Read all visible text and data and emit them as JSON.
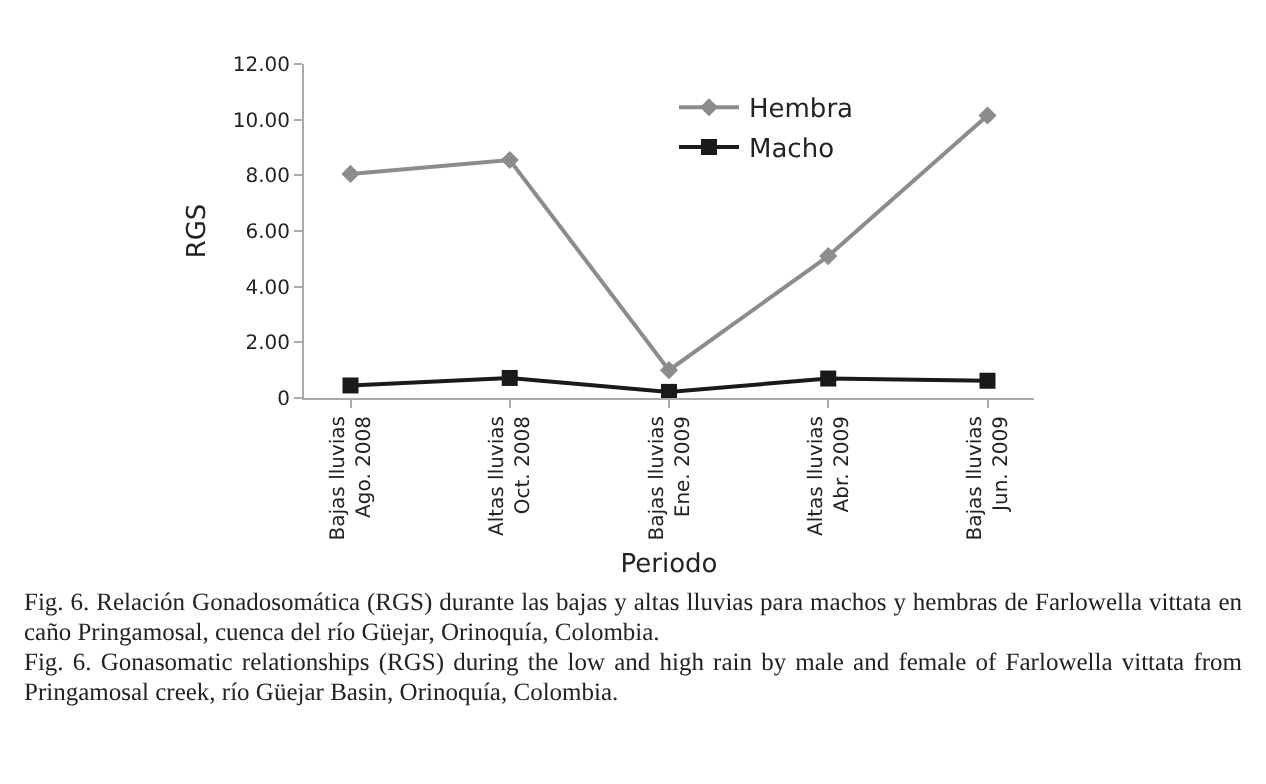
{
  "chart_data": {
    "type": "line",
    "xlabel": "Periodo",
    "ylabel": "RGS",
    "categories": [
      "Bajas lluvias\nAgo. 2008",
      "Altas lluvias\nOct. 2008",
      "Bajas lluvias\nEne. 2009",
      "Altas lluvias\nAbr. 2009",
      "Bajas lluvias\nJun. 2009"
    ],
    "series": [
      {
        "name": "Hembra",
        "color": "#8c8c8c",
        "marker": "diamond",
        "values": [
          8.05,
          8.55,
          1.0,
          5.1,
          10.15
        ]
      },
      {
        "name": "Macho",
        "color": "#1a1a1a",
        "marker": "square",
        "values": [
          0.45,
          0.72,
          0.22,
          0.7,
          0.62
        ]
      }
    ],
    "ylim": [
      0,
      12
    ],
    "yticks": [
      {
        "value": 0,
        "label": "0"
      },
      {
        "value": 2,
        "label": "2.00"
      },
      {
        "value": 4,
        "label": "4.00"
      },
      {
        "value": 6,
        "label": "6.00"
      },
      {
        "value": 8,
        "label": "8.00"
      },
      {
        "value": 10,
        "label": "10.00"
      },
      {
        "value": 12,
        "label": "12.00"
      }
    ],
    "grid": false,
    "legend": "top",
    "line_style": "solid",
    "annotations": [
      "Fig. 6. Relación Gonadosomática (RGS) durante las bajas y altas lluvias para machos y hembras de Farlowella vittata en caño Pringamosal, cuenca del río Güejar, Orinoquía, Colombia.",
      "Fig. 6. Gonasomatic relationships (RGS) during the low and high rain by male and female of Farlowella vittata from Pringamosal creek, río Güejar Basin, Orinoquía, Colombia."
    ]
  }
}
